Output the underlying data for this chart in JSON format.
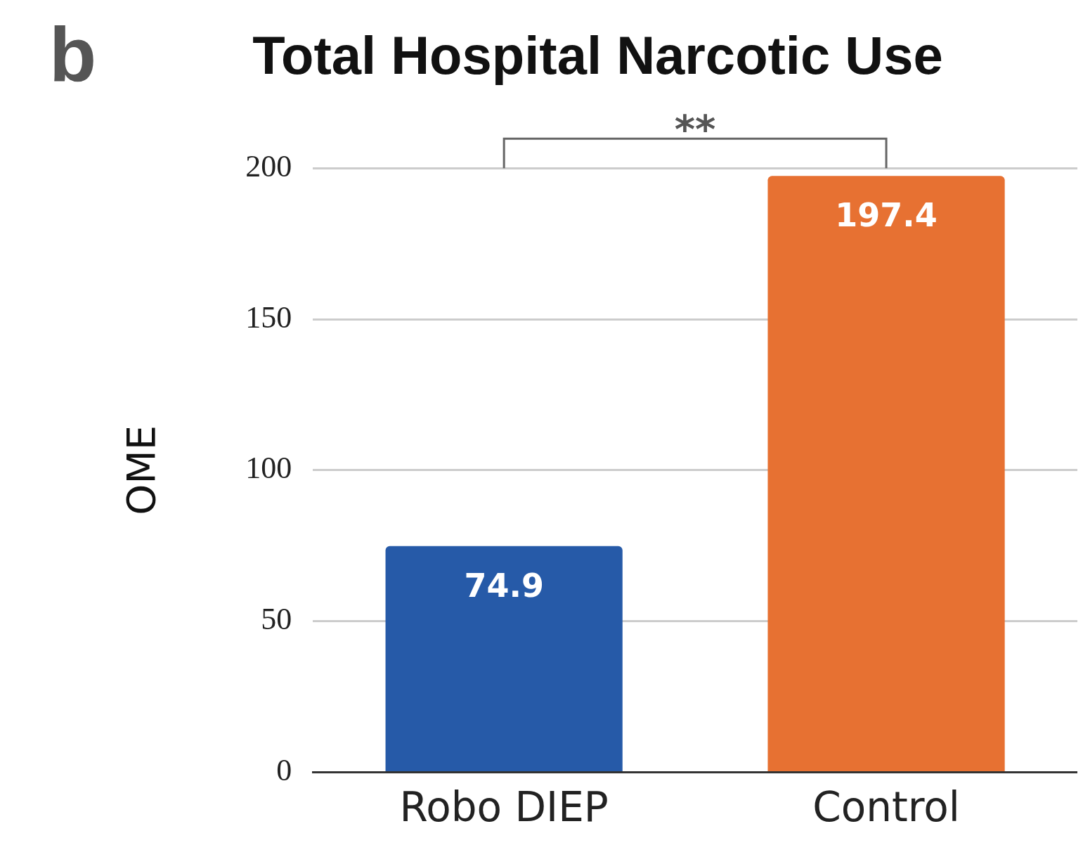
{
  "chart_data": {
    "type": "bar",
    "title": "Total Hospital Narcotic Use",
    "ylabel": "OME",
    "categories": [
      "Robo DIEP",
      "Control"
    ],
    "values": [
      74.9,
      197.4
    ],
    "colors": [
      "#265aa8",
      "#e77132"
    ],
    "ylim": [
      0,
      200
    ],
    "yticks": [
      0,
      50,
      100,
      150,
      200
    ],
    "grid": "y",
    "data_labels": true,
    "legend": false,
    "annotations": [
      "b",
      "**"
    ]
  }
}
